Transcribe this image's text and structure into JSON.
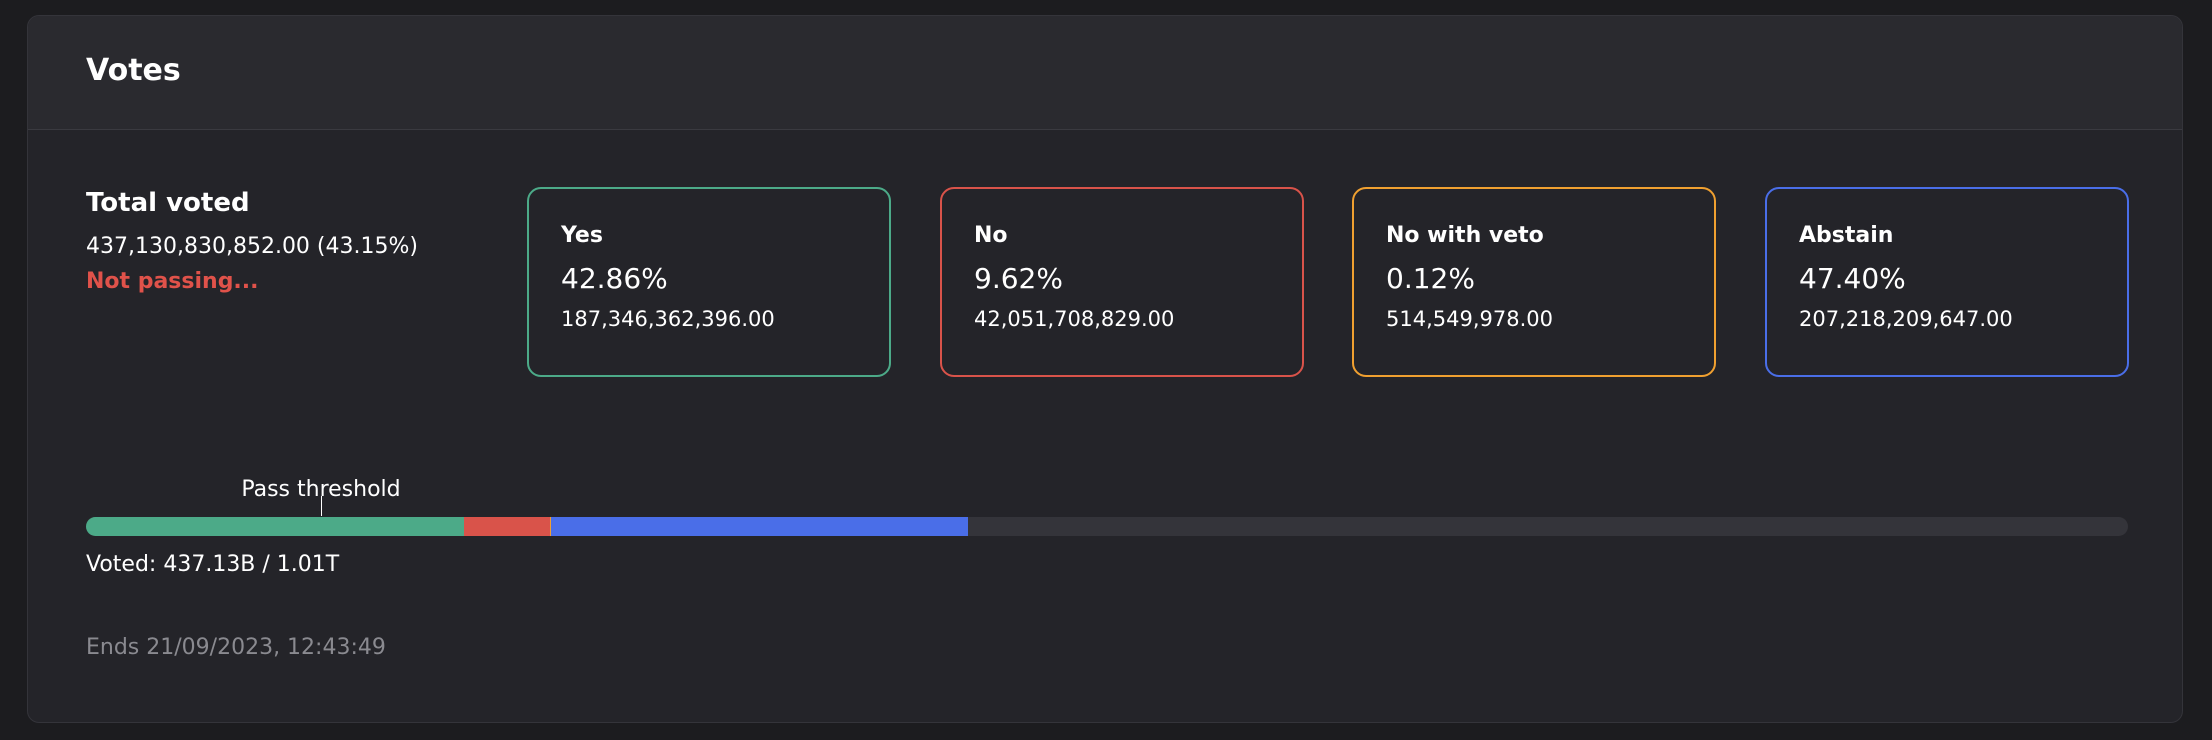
{
  "panel": {
    "title": "Votes"
  },
  "total": {
    "label": "Total voted",
    "value": "437,130,830,852.00 (43.15%)",
    "status": "Not passing..."
  },
  "options": [
    {
      "label": "Yes",
      "percent": "42.86%",
      "amount": "187,346,362,396.00",
      "color": "#4caa88"
    },
    {
      "label": "No",
      "percent": "9.62%",
      "amount": "42,051,708,829.00",
      "color": "#d9534a"
    },
    {
      "label": "No with veto",
      "percent": "0.12%",
      "amount": "514,549,978.00",
      "color": "#f0a030"
    },
    {
      "label": "Abstain",
      "percent": "47.40%",
      "amount": "207,218,209,647.00",
      "color": "#4a6ee8"
    }
  ],
  "progress": {
    "threshold_label": "Pass threshold",
    "threshold_fraction": 0.115,
    "voted_text": "Voted: 437.13B / 1.01T",
    "segments": [
      {
        "name": "yes",
        "fraction": 0.185,
        "color": "#4caa88"
      },
      {
        "name": "no",
        "fraction": 0.042,
        "color": "#d9534a"
      },
      {
        "name": "no-with-veto",
        "fraction": 0.0005,
        "color": "#f0a030"
      },
      {
        "name": "abstain",
        "fraction": 0.2045,
        "color": "#4a6ee8"
      }
    ]
  },
  "footer": {
    "ends": "Ends 21/09/2023, 12:43:49"
  }
}
